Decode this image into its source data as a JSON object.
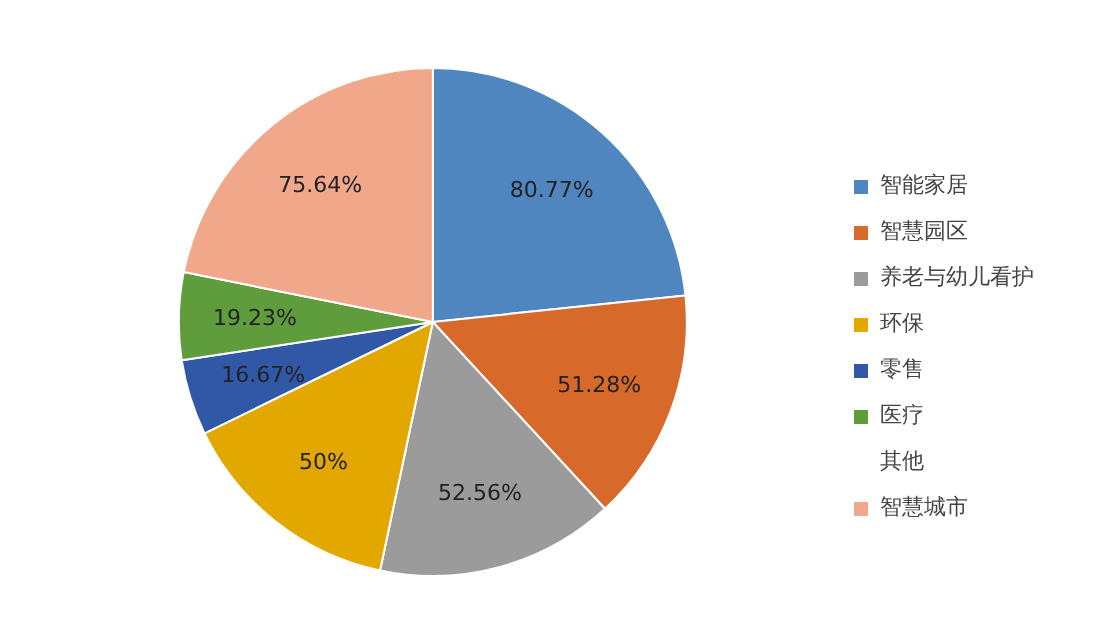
{
  "chart_data": {
    "type": "pie",
    "categories": [
      "智能家居",
      "智慧园区",
      "养老与幼儿看护",
      "环保",
      "零售",
      "医疗",
      "其他",
      "智慧城市"
    ],
    "values": [
      80.77,
      51.28,
      52.56,
      50,
      16.67,
      19.23,
      0,
      75.64
    ],
    "value_labels": [
      "80.77%",
      "51.28%",
      "52.56%",
      "50%",
      "16.67%",
      "19.23%",
      null,
      "75.64%"
    ],
    "colors": [
      "#4f86c0",
      "#d7692b",
      "#9b9b9b",
      "#e2a800",
      "#3158a6",
      "#5e9c3c",
      "#9dc3e6",
      "#f0a78a"
    ],
    "legend": "right"
  }
}
